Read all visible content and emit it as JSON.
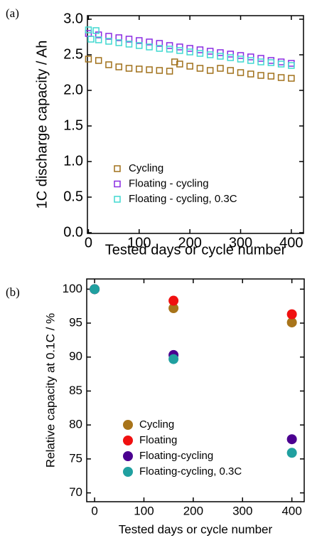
{
  "chart_data": [
    {
      "type": "scatter",
      "panel_label": "(a)",
      "marker": "square",
      "x_label": "Tested days or cycle number",
      "y_label": "1C discharge capacity / Ah",
      "xlim": [
        -2,
        424
      ],
      "ylim": [
        -0.01,
        3.05
      ],
      "xticks": [
        0,
        100,
        200,
        300,
        400
      ],
      "yticks": [
        {
          "value": 0,
          "label": "0.0"
        },
        0.5,
        {
          "value": 1,
          "label": "1.0"
        },
        1.5,
        {
          "value": 2,
          "label": "2.0"
        },
        2.5,
        {
          "value": 3,
          "label": "3.0"
        }
      ],
      "legend": "lower left",
      "series": [
        {
          "name": "Cycling",
          "color": "#a0701a",
          "x": [
            0,
            20,
            40,
            60,
            80,
            100,
            120,
            140,
            160,
            170,
            180,
            200,
            220,
            240,
            260,
            280,
            300,
            320,
            340,
            360,
            380,
            400
          ],
          "values": [
            2.44,
            2.42,
            2.36,
            2.33,
            2.31,
            2.3,
            2.29,
            2.28,
            2.27,
            2.4,
            2.37,
            2.34,
            2.31,
            2.28,
            2.31,
            2.28,
            2.25,
            2.23,
            2.21,
            2.2,
            2.18,
            2.17
          ]
        },
        {
          "name": "Floating - cycling",
          "color": "#8a2be2",
          "x": [
            0,
            20,
            40,
            60,
            80,
            100,
            120,
            140,
            160,
            180,
            200,
            220,
            240,
            260,
            280,
            300,
            320,
            340,
            360,
            380,
            400
          ],
          "values": [
            2.8,
            2.78,
            2.76,
            2.74,
            2.72,
            2.7,
            2.68,
            2.66,
            2.63,
            2.61,
            2.59,
            2.57,
            2.55,
            2.53,
            2.51,
            2.49,
            2.47,
            2.45,
            2.42,
            2.4,
            2.38
          ]
        },
        {
          "name": "Floating - cycling, 0.3C",
          "color": "#40d8d0",
          "x": [
            0,
            15,
            5,
            20,
            40,
            60,
            80,
            100,
            120,
            140,
            160,
            180,
            200,
            220,
            240,
            260,
            280,
            300,
            320,
            340,
            360,
            380,
            400
          ],
          "values": [
            2.85,
            2.84,
            2.72,
            2.71,
            2.69,
            2.67,
            2.65,
            2.63,
            2.61,
            2.59,
            2.58,
            2.56,
            2.54,
            2.52,
            2.5,
            2.48,
            2.46,
            2.44,
            2.42,
            2.4,
            2.39,
            2.37,
            2.35
          ]
        }
      ]
    },
    {
      "type": "scatter",
      "panel_label": "(b)",
      "marker": "circle",
      "x_label": "Tested days or cycle number",
      "y_label": "Relative capacity at 0.1C / %",
      "xlim": [
        -16,
        425
      ],
      "ylim": [
        68.7,
        101.5
      ],
      "xticks": [
        0,
        100,
        200,
        300,
        400
      ],
      "yticks": [
        70,
        75,
        80,
        85,
        90,
        95,
        100
      ],
      "legend": "lower left",
      "series": [
        {
          "name": "Cycling",
          "color": "#a8741a",
          "x": [
            0,
            160,
            400
          ],
          "values": [
            100,
            97.2,
            95.1
          ]
        },
        {
          "name": "Floating",
          "color": "#f01010",
          "x": [
            0,
            160,
            400
          ],
          "values": [
            100,
            98.3,
            96.3
          ]
        },
        {
          "name": "Floating-cycling",
          "color": "#4b0090",
          "x": [
            0,
            160,
            400
          ],
          "values": [
            100,
            90.3,
            77.9
          ]
        },
        {
          "name": "Floating-cycling, 0.3C",
          "color": "#20a0a0",
          "x": [
            0,
            160,
            400
          ],
          "values": [
            100,
            89.7,
            75.9
          ]
        }
      ]
    }
  ]
}
